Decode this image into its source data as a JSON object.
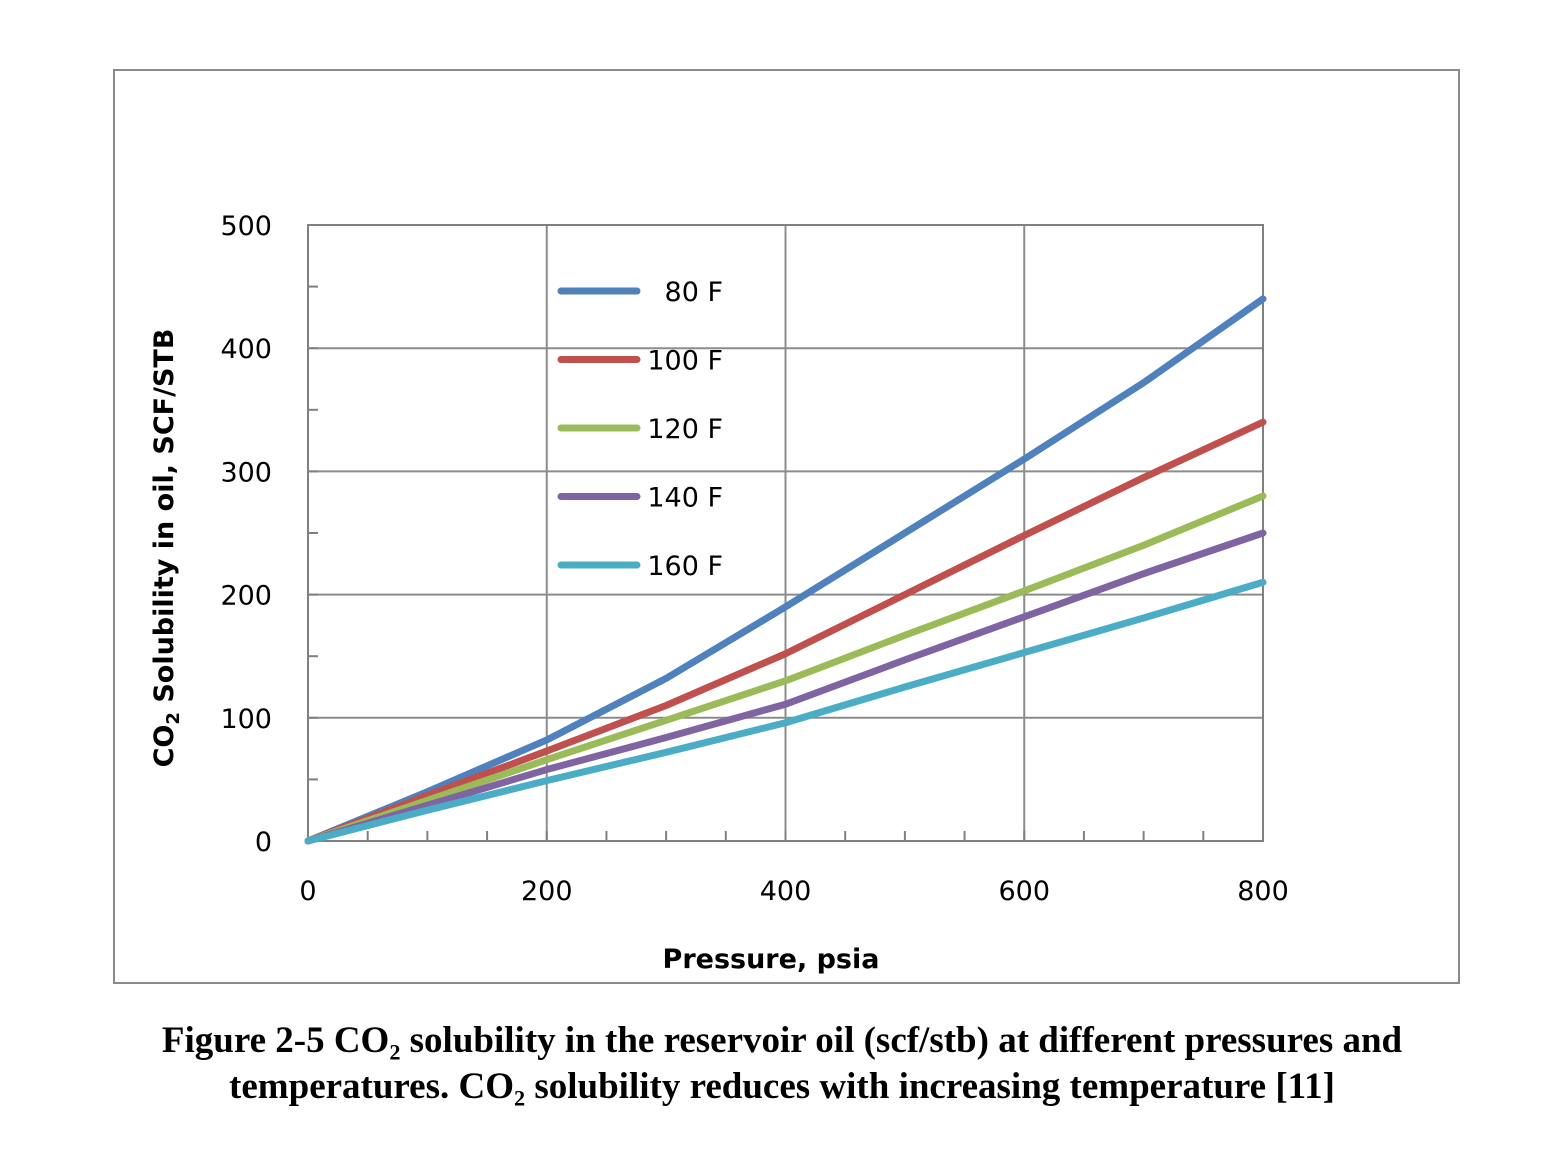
{
  "chart_data": {
    "type": "line",
    "xlabel": "Pressure, psia",
    "ylabel_main": "CO",
    "ylabel_sub": "2",
    "ylabel_rest": " Solubility in oil, SCF/STB",
    "xlim": [
      0,
      800
    ],
    "ylim": [
      0,
      500
    ],
    "xticks": [
      0,
      200,
      400,
      600,
      800
    ],
    "yticks": [
      0,
      100,
      200,
      300,
      400,
      500
    ],
    "grid": true,
    "legend_position": "upper-left inside plot",
    "x": [
      0,
      100,
      200,
      300,
      400,
      500,
      600,
      700,
      800
    ],
    "series": [
      {
        "name": "80 F",
        "color": "#4f81bd",
        "values": [
          0,
          40,
          82,
          132,
          190,
          250,
          310,
          372,
          440
        ]
      },
      {
        "name": "100 F",
        "color": "#c0504d",
        "values": [
          0,
          37,
          73,
          110,
          152,
          200,
          248,
          295,
          340
        ]
      },
      {
        "name": "120 F",
        "color": "#9bbb59",
        "values": [
          0,
          33,
          66,
          98,
          130,
          167,
          203,
          240,
          280
        ]
      },
      {
        "name": "140 F",
        "color": "#8064a2",
        "values": [
          0,
          29,
          58,
          84,
          111,
          147,
          182,
          217,
          250
        ]
      },
      {
        "name": "160 F",
        "color": "#4bacc6",
        "values": [
          0,
          25,
          49,
          72,
          96,
          125,
          153,
          181,
          210
        ]
      }
    ]
  },
  "caption": {
    "line1": "Figure 2-5 CO₂ solubility in the reservoir oil (scf/stb) at different pressures and",
    "line2": "temperatures. CO₂ solubility reduces with increasing temperature [11]"
  }
}
